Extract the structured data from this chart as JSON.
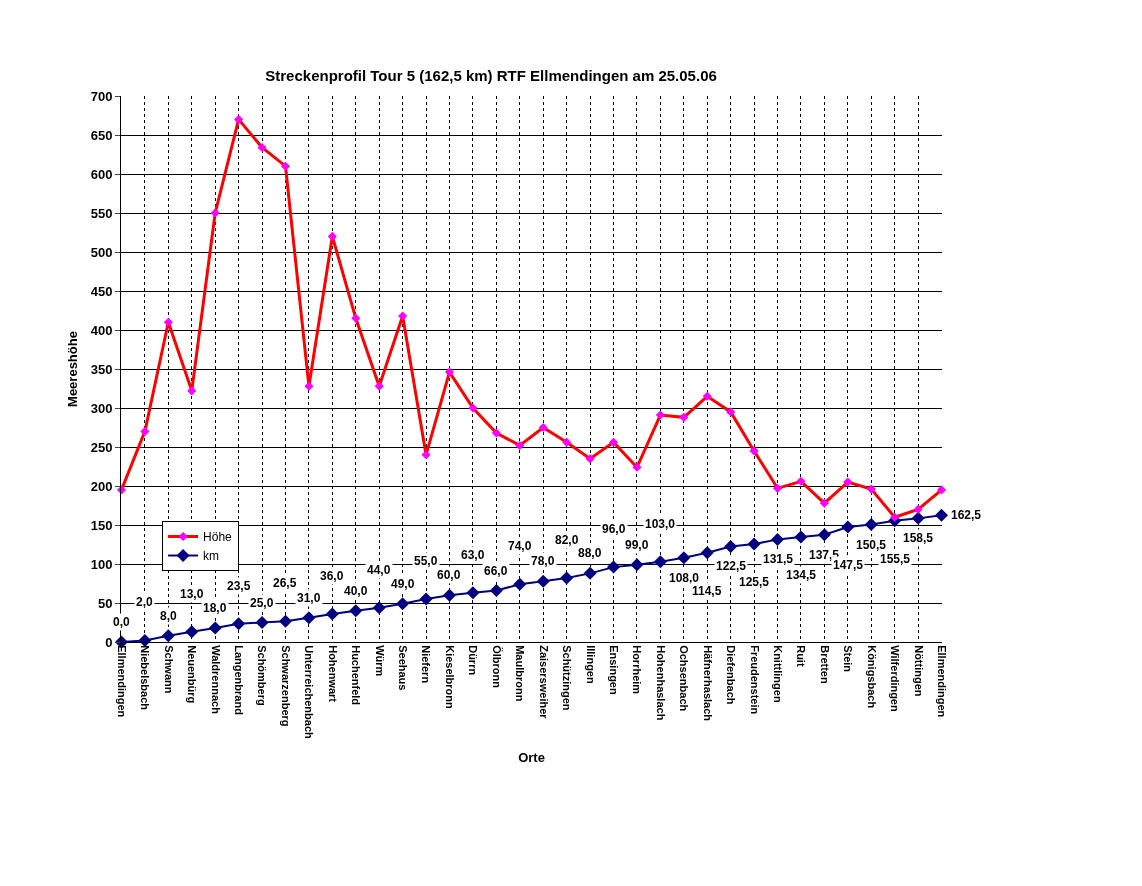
{
  "chart_data": {
    "type": "line",
    "title": "Streckenprofil Tour 5 (162,5 km) RTF Ellmendingen am 25.05.06",
    "xlabel": "Orte",
    "ylabel": "Meereshöhe",
    "categories": [
      "Ellmendingen",
      "Niebelsbach",
      "Schwann",
      "Neuenbürg",
      "Waldrennach",
      "Langenbrand",
      "Schömberg",
      "Schwarzenberg",
      "Unterreichenbach",
      "Hohenwart",
      "Huchenfeld",
      "Würm",
      "Seehaus",
      "Niefern",
      "Kieselbronn",
      "Dürrn",
      "Ölbronn",
      "Maulbronn",
      "Zaisersweiher",
      "Schützingen",
      "Illingen",
      "Ensingen",
      "Horrheim",
      "Hohenhaslach",
      "Ochsenbach",
      "Häfnerhaslach",
      "Diefenbach",
      "Freudenstein",
      "Knittlingen",
      "Ruit",
      "Bretten",
      "Stein",
      "Königsbach",
      "Wilferdingen",
      "Nöttingen",
      "Ellmendingen"
    ],
    "series": [
      {
        "name": "Höhe",
        "color": "#ff0000",
        "values": [
          195,
          270,
          410,
          322,
          550,
          670,
          634,
          610,
          328,
          520,
          415,
          328,
          418,
          240,
          346,
          300,
          268,
          252,
          275,
          256,
          235,
          256,
          224,
          291,
          288,
          315,
          295,
          245,
          197,
          206,
          178,
          205,
          196,
          160,
          170,
          195
        ]
      },
      {
        "name": "km",
        "color": "#000080",
        "values": [
          0,
          2,
          8,
          13,
          18,
          23.5,
          25,
          26.5,
          31,
          36,
          40,
          44,
          49,
          55,
          60,
          63,
          66,
          74,
          78,
          82,
          88,
          96,
          99,
          103,
          108,
          114.5,
          122.5,
          125.5,
          131.5,
          134.5,
          137.5,
          147.5,
          150.5,
          155.5,
          158.5,
          162.5
        ],
        "value_labels": [
          "0,0",
          "2,0",
          "8,0",
          "13,0",
          "18,0",
          "23,5",
          "25,0",
          "26,5",
          "31,0",
          "36,0",
          "40,0",
          "44,0",
          "49,0",
          "55,0",
          "60,0",
          "63,0",
          "66,0",
          "74,0",
          "78,0",
          "82,0",
          "88,0",
          "96,0",
          "99,0",
          "103,0",
          "108,0",
          "114,5",
          "122,5",
          "125,5",
          "131,5",
          "134,5",
          "137,5",
          "147,5",
          "150,5",
          "155,5",
          "158,5",
          "162,5"
        ]
      }
    ],
    "ylim": [
      0,
      700
    ],
    "yticks": [
      0,
      50,
      100,
      150,
      200,
      250,
      300,
      350,
      400,
      450,
      500,
      550,
      600,
      650,
      700
    ],
    "grid": true,
    "legend": "bottom left",
    "marker": "diamond",
    "line_style": "solid"
  }
}
